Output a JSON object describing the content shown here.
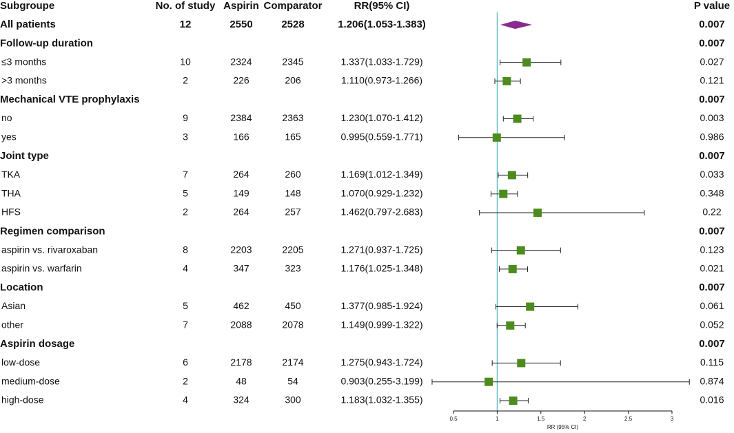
{
  "headers": {
    "subgroup": "Subgroupe",
    "n_study": "No. of study",
    "aspirin": "Aspirin",
    "comparator": "Comparator",
    "rr": "RR(95% CI)",
    "pvalue": "P value"
  },
  "rows": [
    {
      "type": "overall",
      "label": "All patients",
      "n": "12",
      "aspirin": "2550",
      "comparator": "2528",
      "rr_text": "1.206(1.053-1.383)",
      "p": "0.007",
      "rr": 1.206,
      "lo": 1.053,
      "hi": 1.383
    },
    {
      "type": "group",
      "label": "Follow-up duration",
      "p": "0.007"
    },
    {
      "type": "item",
      "label": "≤3 months",
      "n": "10",
      "aspirin": "2324",
      "comparator": "2345",
      "rr_text": "1.337(1.033-1.729)",
      "p": "0.027",
      "rr": 1.337,
      "lo": 1.033,
      "hi": 1.729
    },
    {
      "type": "item",
      "label": ">3 months",
      "n": "2",
      "aspirin": "226",
      "comparator": "206",
      "rr_text": "1.110(0.973-1.266)",
      "p": "0.121",
      "rr": 1.11,
      "lo": 0.973,
      "hi": 1.266
    },
    {
      "type": "group",
      "label": "Mechanical VTE prophylaxis",
      "p": "0.007"
    },
    {
      "type": "item",
      "label": "no",
      "n": "9",
      "aspirin": "2384",
      "comparator": "2363",
      "rr_text": "1.230(1.070-1.412)",
      "p": "0.003",
      "rr": 1.23,
      "lo": 1.07,
      "hi": 1.412
    },
    {
      "type": "item",
      "label": "yes",
      "n": "3",
      "aspirin": "166",
      "comparator": "165",
      "rr_text": "0.995(0.559-1.771)",
      "p": "0.986",
      "rr": 0.995,
      "lo": 0.559,
      "hi": 1.771
    },
    {
      "type": "group",
      "label": "Joint type",
      "p": "0.007"
    },
    {
      "type": "item",
      "label": "TKA",
      "n": "7",
      "aspirin": "264",
      "comparator": "260",
      "rr_text": "1.169(1.012-1.349)",
      "p": "0.033",
      "rr": 1.169,
      "lo": 1.012,
      "hi": 1.349
    },
    {
      "type": "item",
      "label": "THA",
      "n": "5",
      "aspirin": "149",
      "comparator": "148",
      "rr_text": "1.070(0.929-1.232)",
      "p": "0.348",
      "rr": 1.07,
      "lo": 0.929,
      "hi": 1.232
    },
    {
      "type": "item",
      "label": "HFS",
      "n": "2",
      "aspirin": "264",
      "comparator": "257",
      "rr_text": "1.462(0.797-2.683)",
      "p": "0.22",
      "rr": 1.462,
      "lo": 0.797,
      "hi": 2.683
    },
    {
      "type": "group",
      "label": "Regimen comparison",
      "p": "0.007"
    },
    {
      "type": "item",
      "label": "aspirin vs. rivaroxaban",
      "n": "8",
      "aspirin": "2203",
      "comparator": "2205",
      "rr_text": "1.271(0.937-1.725)",
      "p": "0.123",
      "rr": 1.271,
      "lo": 0.937,
      "hi": 1.725
    },
    {
      "type": "item",
      "label": "aspirin vs. warfarin",
      "n": "4",
      "aspirin": "347",
      "comparator": "323",
      "rr_text": "1.176(1.025-1.348)",
      "p": "0.021",
      "rr": 1.176,
      "lo": 1.025,
      "hi": 1.348
    },
    {
      "type": "group",
      "label": "Location",
      "p": "0.007"
    },
    {
      "type": "item",
      "label": "Asian",
      "n": "5",
      "aspirin": "462",
      "comparator": "450",
      "rr_text": "1.377(0.985-1.924)",
      "p": "0.061",
      "rr": 1.377,
      "lo": 0.985,
      "hi": 1.924
    },
    {
      "type": "item",
      "label": "other",
      "n": "7",
      "aspirin": "2088",
      "comparator": "2078",
      "rr_text": "1.149(0.999-1.322)",
      "p": "0.052",
      "rr": 1.149,
      "lo": 0.999,
      "hi": 1.322
    },
    {
      "type": "group",
      "label": "Aspirin dosage",
      "p": "0.007"
    },
    {
      "type": "item",
      "label": "low-dose",
      "n": "6",
      "aspirin": "2178",
      "comparator": "2174",
      "rr_text": "1.275(0.943-1.724)",
      "p": "0.115",
      "rr": 1.275,
      "lo": 0.943,
      "hi": 1.724
    },
    {
      "type": "item",
      "label": "medium-dose",
      "n": "2",
      "aspirin": "48",
      "comparator": "54",
      "rr_text": "0.903(0.255-3.199)",
      "p": "0.874",
      "rr": 0.903,
      "lo": 0.255,
      "hi": 3.199
    },
    {
      "type": "item",
      "label": "high-dose",
      "n": "4",
      "aspirin": "324",
      "comparator": "300",
      "rr_text": "1.183(1.032-1.355)",
      "p": "0.016",
      "rr": 1.183,
      "lo": 1.032,
      "hi": 1.355
    }
  ],
  "chart_data": {
    "type": "forest",
    "xlabel": "RR (95% CI)",
    "xlim": [
      0.5,
      3
    ],
    "ticks": [
      0.5,
      1,
      1.5,
      2,
      2.5,
      3
    ],
    "tick_labels": [
      "0.5",
      "1",
      "1.5",
      "2",
      "2.5",
      "3"
    ],
    "reference_line": 1,
    "colors": {
      "square": "#4c8c1e",
      "diamond": "#8a2c8f",
      "reference": "#5ab8c4",
      "whisker": "#222222"
    }
  }
}
